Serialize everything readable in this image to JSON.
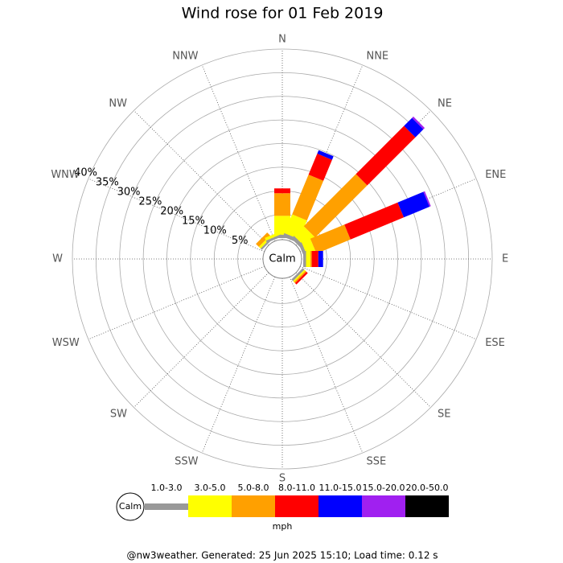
{
  "chart_data": {
    "type": "windrose",
    "title": "Wind rose for 01 Feb 2019",
    "directions": [
      "N",
      "NNE",
      "NE",
      "ENE",
      "E",
      "ESE",
      "SE",
      "SSE",
      "S",
      "SSW",
      "SW",
      "WSW",
      "W",
      "WNW",
      "NW",
      "NNW"
    ],
    "center_label": "Calm",
    "unit": "mph",
    "rlim": [
      0,
      40
    ],
    "rticks": [
      {
        "value": 5,
        "label": "5%"
      },
      {
        "value": 10,
        "label": "10%"
      },
      {
        "value": 15,
        "label": "15%"
      },
      {
        "value": 20,
        "label": "20%"
      },
      {
        "value": 25,
        "label": "25%"
      },
      {
        "value": 30,
        "label": "30%"
      },
      {
        "value": 35,
        "label": "35%"
      },
      {
        "value": 40,
        "label": "40%"
      }
    ],
    "series": [
      {
        "name": "1.0-3.0",
        "color": "#999999",
        "values": [
          0.7,
          0.8,
          0.8,
          0.7,
          0.6,
          0,
          0.5,
          0,
          0,
          0,
          0,
          0,
          0,
          0,
          0.4,
          0.5
        ]
      },
      {
        "name": "3.0-5.0",
        "color": "#ffff00",
        "values": [
          4,
          4.3,
          2.9,
          2,
          0.9,
          0,
          0.3,
          0,
          0,
          0,
          0,
          0,
          0,
          0,
          0.5,
          0.6
        ]
      },
      {
        "name": "5.0-8.0",
        "color": "#ffa000",
        "values": [
          4.8,
          9.1,
          15.6,
          7.8,
          0.3,
          0,
          0.3,
          0,
          0,
          0,
          0,
          0,
          0,
          0,
          0.9,
          0
        ]
      },
      {
        "name": "8.0-11.0",
        "color": "#ff0000",
        "values": [
          1,
          4.8,
          14.4,
          12.2,
          1.4,
          0,
          0.4,
          0,
          0,
          0,
          0,
          0,
          0,
          0,
          0,
          0
        ]
      },
      {
        "name": "11.0-15.0",
        "color": "#0000ff",
        "values": [
          0,
          0.8,
          2.4,
          5.9,
          1,
          0,
          0,
          0,
          0,
          0,
          0,
          0,
          0,
          0,
          0,
          0
        ]
      },
      {
        "name": "15.0-20.0",
        "color": "#a020f0",
        "values": [
          0,
          0,
          0.4,
          0.3,
          0,
          0,
          0,
          0,
          0,
          0,
          0,
          0,
          0,
          0,
          0,
          0
        ]
      },
      {
        "name": "20.0-50.0",
        "color": "#000000",
        "values": [
          0,
          0,
          0,
          0,
          0,
          0,
          0,
          0,
          0,
          0,
          0,
          0,
          0,
          0,
          0,
          0
        ]
      }
    ],
    "footer": "@nw3weather. Generated: 25 Jun 2025 15:10; Load time: 0.12 s"
  }
}
